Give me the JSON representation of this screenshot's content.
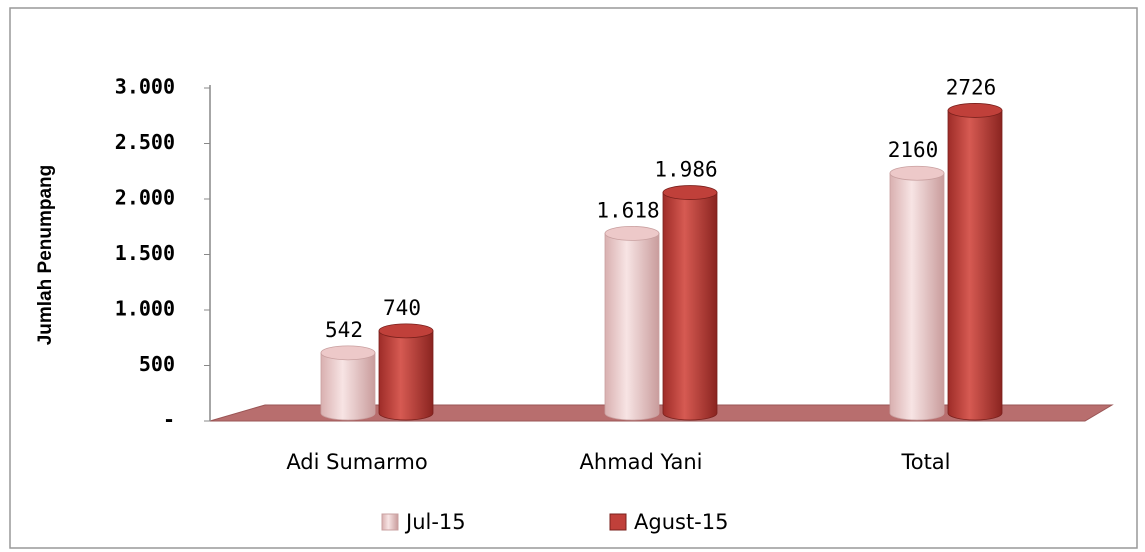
{
  "chart_data": {
    "type": "bar",
    "y_label": "Jumlah Penumpang",
    "categories": [
      "Adi Sumarmo",
      "Ahmad Yani",
      "Total"
    ],
    "series": [
      {
        "name": "Jul-15",
        "color": "#edc9c9",
        "values": [
          542,
          1618,
          2160
        ],
        "value_labels": [
          "542",
          "1.618",
          "2160"
        ]
      },
      {
        "name": "Agust-15",
        "color": "#c0403a",
        "values": [
          740,
          1986,
          2726
        ],
        "value_labels": [
          "740",
          "1.986",
          "2726"
        ]
      }
    ],
    "ylim": [
      0,
      3000
    ],
    "yticks": [
      {
        "value": 0,
        "label": "-"
      },
      500,
      {
        "value": 1000,
        "label": "1.000"
      },
      {
        "value": 1500,
        "label": "1.500"
      },
      {
        "value": 2000,
        "label": "2.000"
      },
      {
        "value": 2500,
        "label": "2.500"
      },
      {
        "value": 3000,
        "label": "3.000"
      }
    ],
    "legend": "bottom"
  }
}
